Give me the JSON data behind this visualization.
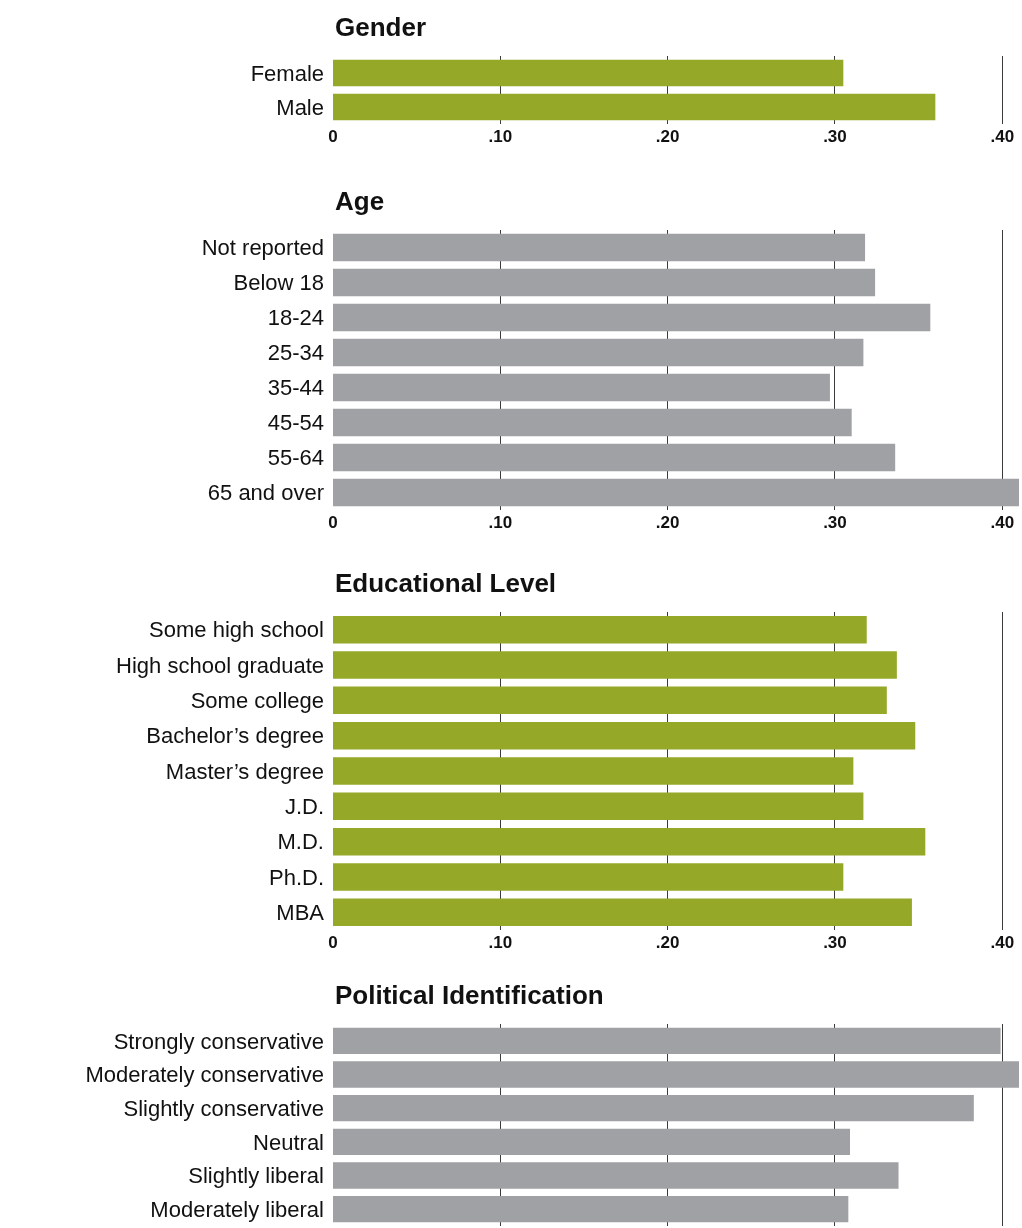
{
  "chart_data": [
    {
      "type": "bar",
      "orientation": "horizontal",
      "title": "Gender",
      "categories": [
        "Female",
        "Male"
      ],
      "values": [
        0.305,
        0.36
      ],
      "color": "#95a828",
      "xlim": [
        0,
        0.41
      ],
      "xticks": [
        0,
        {
          "value": 0.1,
          "label": ".10"
        },
        {
          "value": 0.2,
          "label": ".20"
        },
        {
          "value": 0.3,
          "label": ".30"
        },
        {
          "value": 0.4,
          "label": ".40"
        }
      ],
      "grid": "x"
    },
    {
      "type": "bar",
      "orientation": "horizontal",
      "title": "Age",
      "categories": [
        "Not reported",
        "Below 18",
        "18-24",
        "25-34",
        "35-44",
        "45-54",
        "55-64",
        "65 and over"
      ],
      "values": [
        0.318,
        0.324,
        0.357,
        0.317,
        0.297,
        0.31,
        0.336,
        0.41
      ],
      "color": "#a0a1a5",
      "xlim": [
        0,
        0.41
      ],
      "xticks": [
        0,
        {
          "value": 0.1,
          "label": ".10"
        },
        {
          "value": 0.2,
          "label": ".20"
        },
        {
          "value": 0.3,
          "label": ".30"
        },
        {
          "value": 0.4,
          "label": ".40"
        }
      ],
      "grid": "x"
    },
    {
      "type": "bar",
      "orientation": "horizontal",
      "title": "Educational Level",
      "categories": [
        "Some high school",
        "High school graduate",
        "Some college",
        "Bachelor’s degree",
        "Master’s degree",
        "J.D.",
        "M.D.",
        "Ph.D.",
        "MBA"
      ],
      "values": [
        0.319,
        0.337,
        0.331,
        0.348,
        0.311,
        0.317,
        0.354,
        0.305,
        0.346
      ],
      "color": "#95a828",
      "xlim": [
        0,
        0.41
      ],
      "xticks": [
        0,
        {
          "value": 0.1,
          "label": ".10"
        },
        {
          "value": 0.2,
          "label": ".20"
        },
        {
          "value": 0.3,
          "label": ".30"
        },
        {
          "value": 0.4,
          "label": ".40"
        }
      ],
      "grid": "x"
    },
    {
      "type": "bar",
      "orientation": "horizontal",
      "title": "Political Identification",
      "categories": [
        "Strongly conservative",
        "Moderately conservative",
        "Slightly conservative",
        "Neutral",
        "Slightly liberal",
        "Moderately liberal"
      ],
      "values": [
        0.399,
        0.41,
        0.383,
        0.309,
        0.338,
        0.308
      ],
      "color": "#a0a1a5",
      "xlim": [
        0,
        0.41
      ],
      "xticks": [
        0,
        0.1,
        0.2,
        0.3,
        0.4
      ],
      "grid": "x",
      "tick_labels": "y"
    }
  ]
}
